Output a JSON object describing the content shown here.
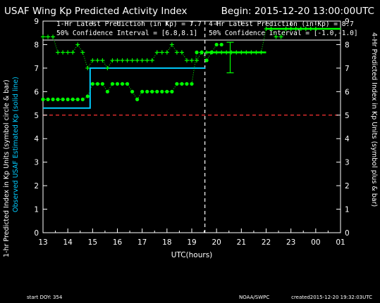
{
  "header": {
    "title": "USAF Wing Kp Predicted Activity Index",
    "begin": "Begin: 2015-12-20 13:00:00UTC"
  },
  "box_left": {
    "line1": "1-Hr Latest Prediction (in Kp) = 7.7",
    "line2": "50% Confidence Interval  = [6.8,8.1]"
  },
  "box_right": {
    "line1": "4-Hr Latest Prediction (in Kp) = 8.7",
    "line2": "50% Confidence Interval  = [-1.0,-1.0]"
  },
  "footer": {
    "start_doy": "start DOY: 354",
    "source": "NOAA/SWPC",
    "created": "created2015-12-20 19:32:03UTC"
  },
  "chart_data": {
    "type": "line",
    "xlabel": "UTC(hours)",
    "ylabel_left_part1": "1-hr Predicted Index in Kp Units (symbol circle & bar)",
    "ylabel_left_part2": "Observed USAF Estimated Kp (solid line)",
    "ylabel_right": "4-Hr Predicted Index in Kp Units (symbol plus & bar)",
    "x_ticks": [
      "13",
      "14",
      "15",
      "16",
      "17",
      "18",
      "19",
      "20",
      "21",
      "22",
      "23",
      "00",
      "01"
    ],
    "y_ticks": [
      "0",
      "1",
      "2",
      "3",
      "4",
      "5",
      "6",
      "7",
      "8",
      "9"
    ],
    "xlim": [
      13,
      25
    ],
    "ylim": [
      0,
      9
    ],
    "now_hour": 19.53,
    "threshold": 5,
    "colors": {
      "observed": "#00ccff",
      "one_hr": "#00ff00",
      "four_hr": "#00ff00",
      "threshold": "#ff3333",
      "axes": "#ffffff",
      "left_label_cyan": "#00ccff"
    },
    "observed_kp": [
      [
        13.0,
        5.3
      ],
      [
        14.9,
        5.3
      ],
      [
        14.9,
        7.0
      ],
      [
        19.55,
        7.0
      ]
    ],
    "one_hr_prediction": [
      [
        13.0,
        5.67
      ],
      [
        13.2,
        5.67
      ],
      [
        13.4,
        5.67
      ],
      [
        13.6,
        5.67
      ],
      [
        13.8,
        5.67
      ],
      [
        14.0,
        5.67
      ],
      [
        14.2,
        5.67
      ],
      [
        14.4,
        5.67
      ],
      [
        14.6,
        5.67
      ],
      [
        14.8,
        5.8
      ],
      [
        15.0,
        6.33
      ],
      [
        15.2,
        6.33
      ],
      [
        15.4,
        6.33
      ],
      [
        15.6,
        6.0
      ],
      [
        15.8,
        6.33
      ],
      [
        16.0,
        6.33
      ],
      [
        16.2,
        6.33
      ],
      [
        16.4,
        6.33
      ],
      [
        16.6,
        6.0
      ],
      [
        16.8,
        5.67
      ],
      [
        17.0,
        6.0
      ],
      [
        17.2,
        6.0
      ],
      [
        17.4,
        6.0
      ],
      [
        17.6,
        6.0
      ],
      [
        17.8,
        6.0
      ],
      [
        18.0,
        6.0
      ],
      [
        18.2,
        6.0
      ],
      [
        18.4,
        6.33
      ],
      [
        18.6,
        6.33
      ],
      [
        18.8,
        6.33
      ],
      [
        19.0,
        6.33
      ],
      [
        19.2,
        7.67
      ],
      [
        19.4,
        7.67
      ],
      [
        19.6,
        7.33
      ],
      [
        19.8,
        7.67
      ],
      [
        20.0,
        8.0
      ],
      [
        20.2,
        8.0
      ]
    ],
    "one_hr_latest": {
      "x": 20.55,
      "y": 7.7,
      "low": 6.8,
      "high": 8.1
    },
    "four_hr_prediction": [
      [
        13.0,
        8.33
      ],
      [
        13.2,
        8.33
      ],
      [
        13.4,
        8.33
      ],
      [
        13.6,
        7.67
      ],
      [
        13.8,
        7.67
      ],
      [
        14.0,
        7.67
      ],
      [
        14.2,
        7.67
      ],
      [
        14.4,
        8.0
      ],
      [
        14.6,
        7.67
      ],
      [
        14.8,
        7.0
      ],
      [
        15.0,
        7.33
      ],
      [
        15.2,
        7.33
      ],
      [
        15.4,
        7.33
      ],
      [
        15.6,
        7.0
      ],
      [
        15.8,
        7.33
      ],
      [
        16.0,
        7.33
      ],
      [
        16.2,
        7.33
      ],
      [
        16.4,
        7.33
      ],
      [
        16.6,
        7.33
      ],
      [
        16.8,
        7.33
      ],
      [
        17.0,
        7.33
      ],
      [
        17.2,
        7.33
      ],
      [
        17.4,
        7.33
      ],
      [
        17.6,
        7.67
      ],
      [
        17.8,
        7.67
      ],
      [
        18.0,
        7.67
      ],
      [
        18.2,
        8.0
      ],
      [
        18.4,
        7.67
      ],
      [
        18.6,
        7.67
      ],
      [
        18.8,
        7.33
      ],
      [
        19.0,
        7.33
      ],
      [
        19.2,
        7.33
      ],
      [
        19.4,
        7.67
      ],
      [
        19.6,
        7.67
      ],
      [
        19.8,
        7.67
      ],
      [
        20.0,
        7.67
      ],
      [
        20.2,
        7.67
      ],
      [
        20.4,
        7.67
      ],
      [
        20.6,
        7.67
      ],
      [
        20.8,
        7.67
      ],
      [
        21.0,
        7.67
      ],
      [
        21.2,
        7.67
      ],
      [
        21.4,
        7.67
      ],
      [
        21.6,
        7.67
      ],
      [
        21.8,
        7.67
      ],
      [
        22.0,
        8.67
      ],
      [
        22.2,
        8.67
      ],
      [
        22.4,
        8.33
      ],
      [
        22.6,
        8.33
      ],
      [
        22.8,
        8.67
      ],
      [
        23.0,
        8.67
      ],
      [
        23.2,
        8.67
      ],
      [
        23.4,
        8.67
      ],
      [
        23.6,
        8.67
      ],
      [
        23.8,
        8.67
      ],
      [
        24.0,
        8.67
      ]
    ],
    "four_hr_latest": {
      "x": 22.0,
      "y": 8.67
    },
    "four_hr_line": [
      [
        22.0,
        8.67
      ],
      [
        25.0,
        8.67
      ]
    ],
    "one_hr_line": [
      [
        19.55,
        7.67
      ],
      [
        22.0,
        7.67
      ]
    ]
  }
}
